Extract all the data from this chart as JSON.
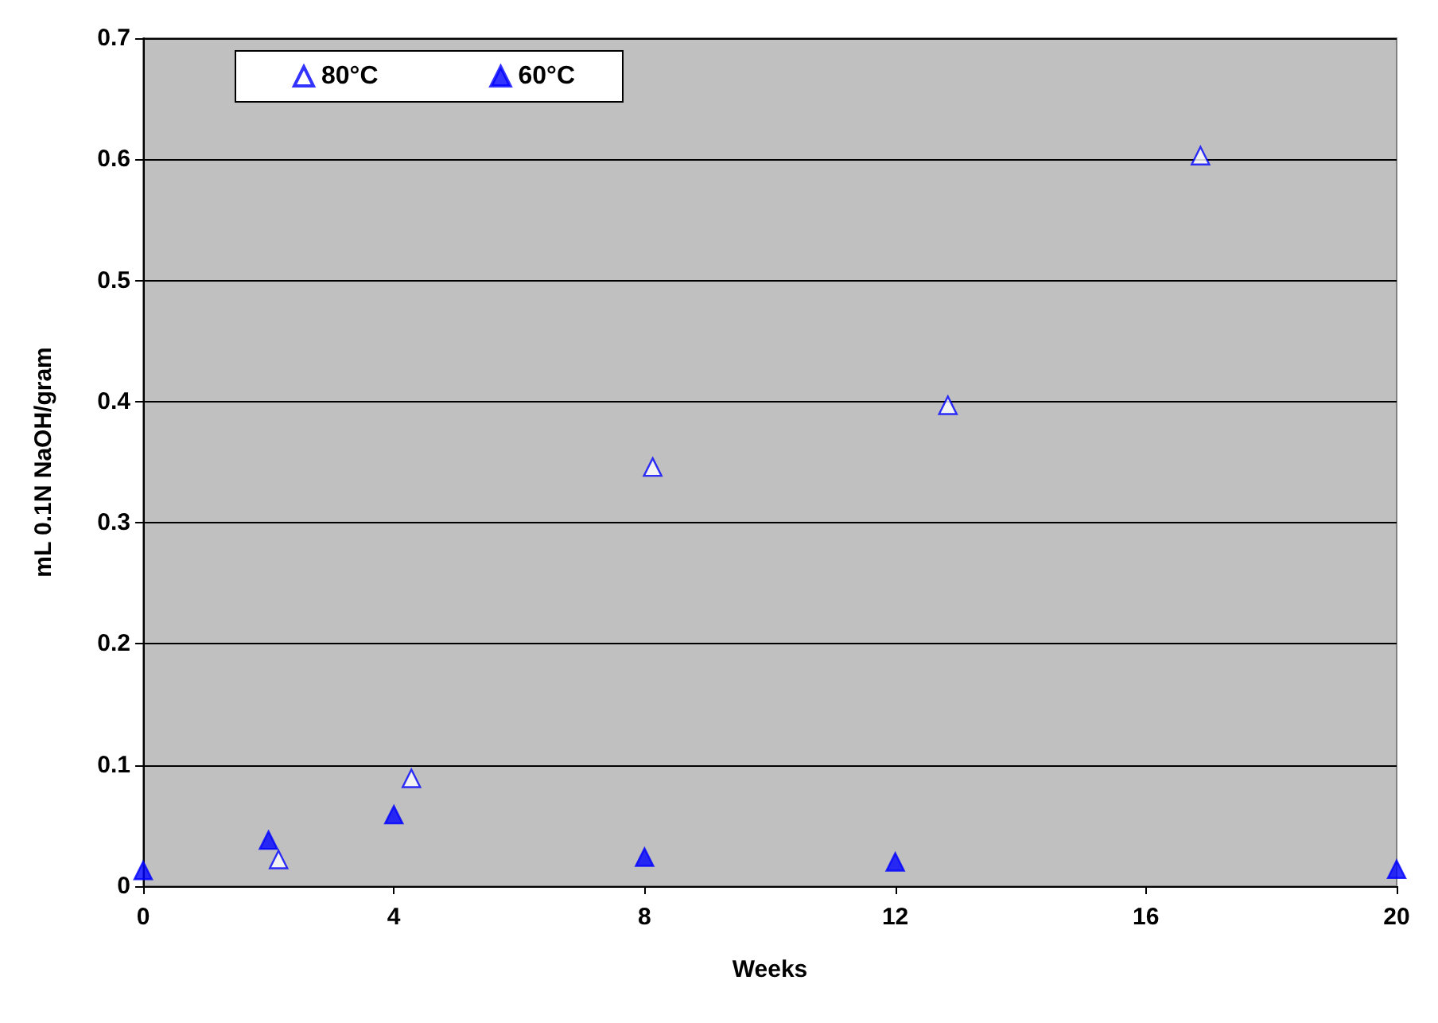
{
  "chart_data": {
    "type": "scatter",
    "xlabel": "Weeks",
    "ylabel": "mL 0.1N NaOH/gram",
    "series": [
      {
        "name": "80°C",
        "color": "#0000ff",
        "x": [
          2.16,
          4.28,
          8.13,
          12.84,
          16.87
        ],
        "values": [
          0.022,
          0.089,
          0.346,
          0.397,
          0.603
        ]
      },
      {
        "name": "60°C",
        "color": "#0000ff",
        "x": [
          0,
          2,
          4,
          8,
          12,
          20
        ],
        "values": [
          0.013,
          0.038,
          0.059,
          0.024,
          0.02,
          0.014
        ]
      }
    ],
    "xlim": [
      0,
      20
    ],
    "xticks": [
      0,
      4,
      8,
      12,
      16,
      20
    ],
    "ylim": [
      0,
      0.7
    ],
    "yticks": [
      0,
      0.1,
      0.2,
      0.3,
      0.4,
      0.5,
      0.6,
      0.7
    ],
    "grid": "y",
    "legend": "top left",
    "marker": "triangle"
  }
}
